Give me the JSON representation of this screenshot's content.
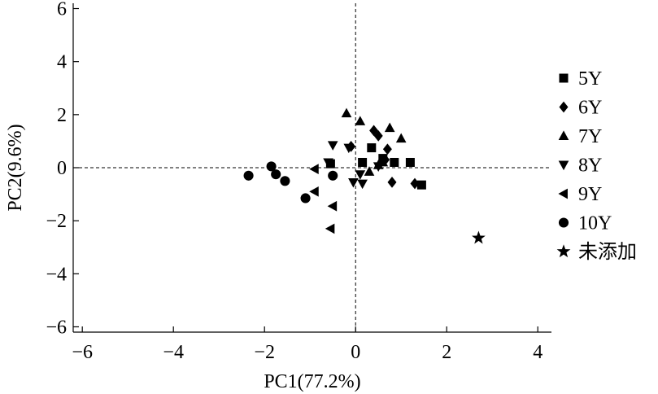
{
  "chart_data": {
    "type": "scatter",
    "title": "",
    "xlabel": "PC1(77.2%)",
    "ylabel": "PC2(9.6%)",
    "xlim": [
      -6.2,
      4.3
    ],
    "ylim": [
      -6.2,
      6.2
    ],
    "xticks": [
      -6,
      -4,
      -2,
      0,
      2,
      4
    ],
    "yticks": [
      -6,
      -4,
      -2,
      0,
      2,
      4,
      6
    ],
    "xtick_labels": [
      "−6",
      "−4",
      "−2",
      "0",
      "2",
      "4"
    ],
    "ytick_labels": [
      "−6",
      "−4",
      "−2",
      "0",
      "2",
      "4",
      "6"
    ],
    "zero_lines": true,
    "legend_position": "right",
    "series": [
      {
        "name": "5Y",
        "marker": "square",
        "points": [
          [
            0.15,
            0.2
          ],
          [
            0.35,
            0.75
          ],
          [
            0.6,
            0.35
          ],
          [
            0.85,
            0.2
          ],
          [
            1.2,
            0.2
          ],
          [
            1.45,
            -0.65
          ],
          [
            -0.55,
            0.15
          ]
        ]
      },
      {
        "name": "6Y",
        "marker": "diamond",
        "points": [
          [
            0.4,
            1.4
          ],
          [
            0.5,
            1.2
          ],
          [
            0.7,
            0.7
          ],
          [
            0.8,
            -0.55
          ],
          [
            1.3,
            -0.6
          ],
          [
            -0.1,
            0.8
          ],
          [
            0.65,
            0.3
          ]
        ]
      },
      {
        "name": "7Y",
        "marker": "triangle-up",
        "points": [
          [
            -0.2,
            2.05
          ],
          [
            0.1,
            1.75
          ],
          [
            0.75,
            1.5
          ],
          [
            1.0,
            1.1
          ],
          [
            0.5,
            0.1
          ],
          [
            0.3,
            -0.15
          ],
          [
            0.6,
            0.2
          ]
        ]
      },
      {
        "name": "8Y",
        "marker": "triangle-down",
        "points": [
          [
            -0.5,
            0.85
          ],
          [
            -0.15,
            0.75
          ],
          [
            -0.6,
            0.2
          ],
          [
            -0.05,
            -0.55
          ],
          [
            0.1,
            -0.25
          ],
          [
            0.15,
            -0.6
          ],
          [
            0.5,
            0.05
          ]
        ]
      },
      {
        "name": "9Y",
        "marker": "triangle-left",
        "points": [
          [
            -0.9,
            -0.05
          ],
          [
            -0.9,
            -0.9
          ],
          [
            -0.5,
            -1.45
          ],
          [
            -0.55,
            -2.3
          ]
        ]
      },
      {
        "name": "10Y",
        "marker": "circle",
        "points": [
          [
            -2.35,
            -0.3
          ],
          [
            -1.85,
            0.05
          ],
          [
            -1.75,
            -0.25
          ],
          [
            -1.55,
            -0.5
          ],
          [
            -1.1,
            -1.15
          ],
          [
            -0.5,
            -0.3
          ]
        ]
      },
      {
        "name": "未添加",
        "marker": "star",
        "points": [
          [
            2.7,
            -2.65
          ]
        ]
      }
    ]
  }
}
